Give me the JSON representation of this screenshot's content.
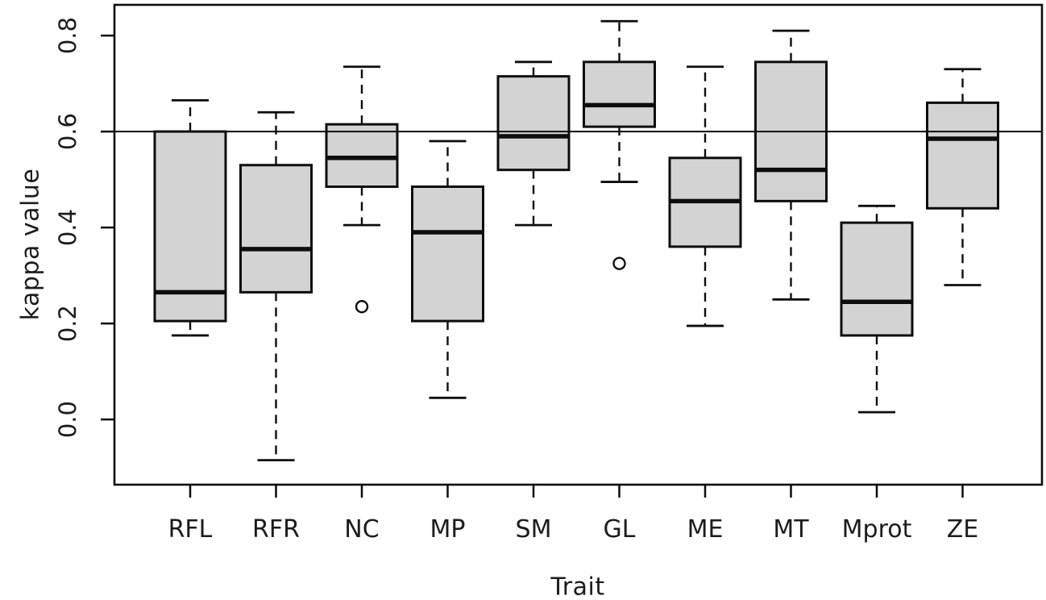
{
  "figure": {
    "background": "#ffffff",
    "text_color": "#1c1c1c",
    "line_color": "#0d0d0d"
  },
  "chart_data": {
    "type": "boxplot",
    "title": "",
    "xlabel": "Trait",
    "ylabel": "kappa value",
    "categories": [
      "RFL",
      "RFR",
      "NC",
      "MP",
      "SM",
      "GL",
      "ME",
      "MT",
      "Mprot",
      "ZE"
    ],
    "y_ticks": [
      0.0,
      0.2,
      0.4,
      0.6,
      0.8
    ],
    "y_tick_labels": [
      "0.0",
      "0.2",
      "0.4",
      "0.6",
      "0.8"
    ],
    "ylim": [
      -0.136,
      0.864
    ],
    "reference_line_y": 0.6,
    "grid": false,
    "legend": "none",
    "box_fill": "#d3d3d3",
    "box_stroke": "#0d0d0d",
    "series": [
      {
        "category": "RFL",
        "whisker_low": 0.175,
        "q1": 0.205,
        "median": 0.265,
        "q3": 0.6,
        "whisker_high": 0.665,
        "outliers": []
      },
      {
        "category": "RFR",
        "whisker_low": -0.085,
        "q1": 0.265,
        "median": 0.355,
        "q3": 0.53,
        "whisker_high": 0.64,
        "outliers": []
      },
      {
        "category": "NC",
        "whisker_low": 0.405,
        "q1": 0.485,
        "median": 0.545,
        "q3": 0.615,
        "whisker_high": 0.735,
        "outliers": [
          0.235
        ]
      },
      {
        "category": "MP",
        "whisker_low": 0.045,
        "q1": 0.205,
        "median": 0.39,
        "q3": 0.485,
        "whisker_high": 0.58,
        "outliers": []
      },
      {
        "category": "SM",
        "whisker_low": 0.405,
        "q1": 0.52,
        "median": 0.59,
        "q3": 0.715,
        "whisker_high": 0.745,
        "outliers": []
      },
      {
        "category": "GL",
        "whisker_low": 0.495,
        "q1": 0.61,
        "median": 0.655,
        "q3": 0.745,
        "whisker_high": 0.83,
        "outliers": [
          0.325
        ]
      },
      {
        "category": "ME",
        "whisker_low": 0.195,
        "q1": 0.36,
        "median": 0.455,
        "q3": 0.545,
        "whisker_high": 0.735,
        "outliers": []
      },
      {
        "category": "MT",
        "whisker_low": 0.25,
        "q1": 0.455,
        "median": 0.52,
        "q3": 0.745,
        "whisker_high": 0.81,
        "outliers": []
      },
      {
        "category": "Mprot",
        "whisker_low": 0.015,
        "q1": 0.175,
        "median": 0.245,
        "q3": 0.41,
        "whisker_high": 0.445,
        "outliers": []
      },
      {
        "category": "ZE",
        "whisker_low": 0.28,
        "q1": 0.44,
        "median": 0.585,
        "q3": 0.66,
        "whisker_high": 0.73,
        "outliers": []
      }
    ]
  }
}
